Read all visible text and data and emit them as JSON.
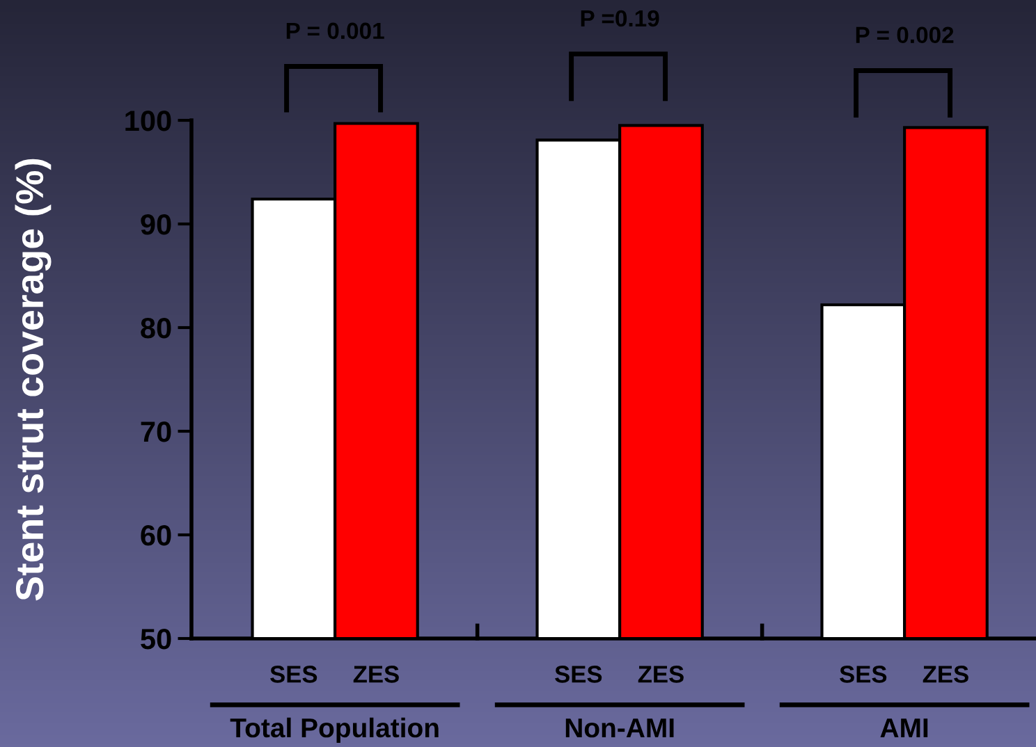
{
  "chart_data": {
    "type": "bar",
    "categories": [
      "Total Population",
      "Non-AMI",
      "AMI"
    ],
    "series": [
      {
        "name": "SES",
        "color": "#ffffff",
        "values": [
          92.4,
          98.1,
          82.2
        ]
      },
      {
        "name": "ZES",
        "color": "#ff0000",
        "values": [
          99.7,
          99.5,
          99.3
        ]
      }
    ],
    "ylabel": "Stent strut coverage (%)",
    "ylim": [
      50,
      100
    ],
    "yticks": [
      50,
      60,
      70,
      80,
      90,
      100
    ],
    "annotations": [
      "P = 0.001",
      "P =0.19",
      "P = 0.002"
    ],
    "grid": false,
    "legend": false
  }
}
